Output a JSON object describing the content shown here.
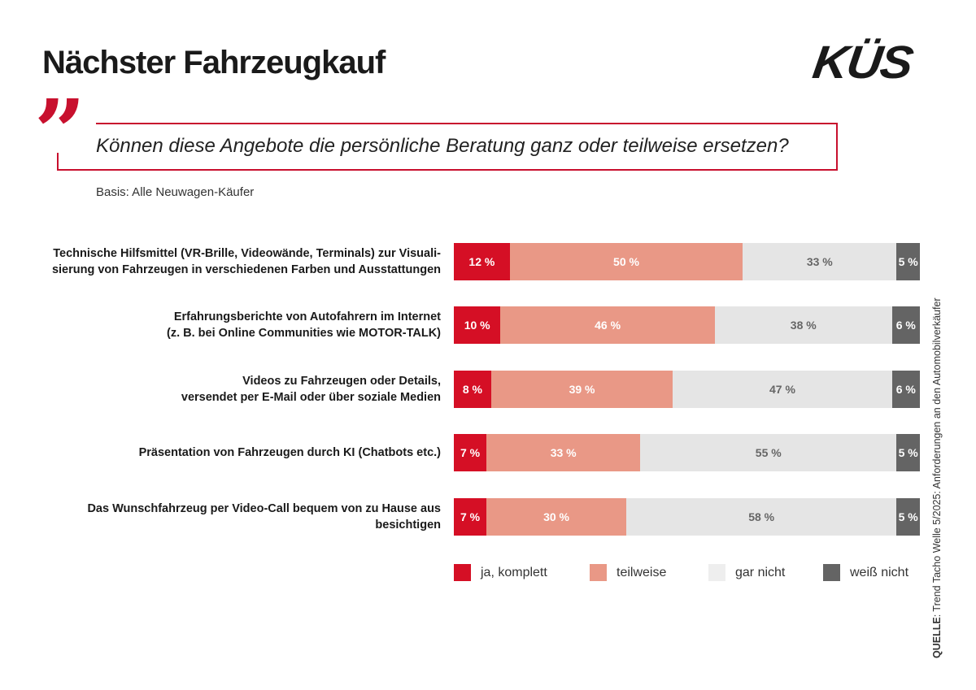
{
  "header": {
    "title": "Nächster Fahrzeugkauf",
    "logo": "KÜS"
  },
  "question": "Können diese Angebote die persönliche Beratung ganz oder teilweise ersetzen?",
  "basis": "Basis: Alle Neuwagen-Käufer",
  "source": {
    "label": "QUELLE",
    "text": ": Trend Tacho Welle 5/2025: Anforderungen an den Automobilverkäufer"
  },
  "chart_data": {
    "type": "bar",
    "orientation": "horizontal",
    "stacked": true,
    "xlim": [
      0,
      100
    ],
    "unit": "%",
    "categories": [
      "Technische Hilfsmittel (VR-Brille, Videowände, Terminals) zur Visuali-\nsierung von Fahrzeugen in verschiedenen Farben und Ausstattungen",
      "Erfahrungsberichte von Autofahrern im Internet\n(z. B. bei Online Communities wie MOTOR-TALK)",
      "Videos zu Fahrzeugen oder Details,\nversendet per E-Mail oder über soziale Medien",
      "Präsentation von Fahrzeugen durch KI (Chatbots etc.)",
      "Das Wunschfahrzeug per Video-Call bequem von zu Hause aus\nbesichtigen"
    ],
    "series": [
      {
        "name": "ja, komplett",
        "color": "#d50f25",
        "text_color": "#ffffff",
        "values": [
          12,
          10,
          8,
          7,
          7
        ]
      },
      {
        "name": "teilweise",
        "color": "#e99886",
        "text_color": "#ffffff",
        "values": [
          50,
          46,
          39,
          33,
          30
        ]
      },
      {
        "name": "gar nicht",
        "color": "#e5e5e5",
        "text_color": "#666666",
        "values": [
          33,
          38,
          47,
          55,
          58
        ]
      },
      {
        "name": "weiß nicht",
        "color": "#646464",
        "text_color": "#ffffff",
        "values": [
          5,
          6,
          6,
          5,
          5
        ]
      }
    ],
    "legend_position": "bottom",
    "grid": false
  }
}
